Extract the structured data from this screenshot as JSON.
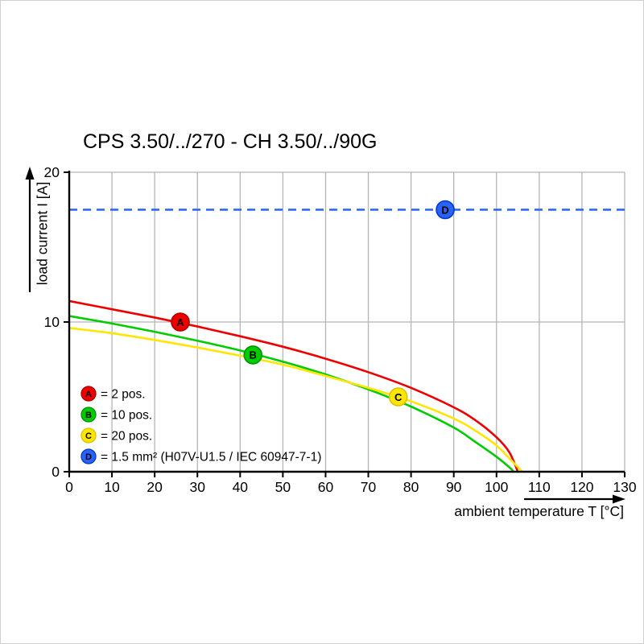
{
  "page": {
    "background": "#ffffff",
    "frame_border_color": "#cfcfcf"
  },
  "chart_data": {
    "type": "line",
    "title": "CPS 3.50/../270 - CH 3.50/../90G",
    "xlabel": "ambient temperature T [°C]",
    "ylabel": "load current I [A]",
    "xlim": [
      0,
      130
    ],
    "ylim": [
      0,
      20
    ],
    "x_ticks": [
      0,
      10,
      20,
      30,
      40,
      50,
      60,
      70,
      80,
      90,
      100,
      110,
      120,
      130
    ],
    "y_ticks": [
      0,
      10,
      20
    ],
    "grid": "on",
    "grid_color": "#b5b5b5",
    "axis_color": "#000000",
    "marker_letter_color": "#ffffff",
    "legend_position": "inside-bottom-left",
    "series": [
      {
        "id": "A",
        "legend": "= 2 pos.",
        "color": "#ee0000",
        "marker_stroke": "#aa0000",
        "line_style": "solid",
        "points": [
          [
            0,
            11.4
          ],
          [
            10,
            10.85
          ],
          [
            20,
            10.3
          ],
          [
            30,
            9.7
          ],
          [
            40,
            9.05
          ],
          [
            50,
            8.35
          ],
          [
            60,
            7.55
          ],
          [
            70,
            6.65
          ],
          [
            80,
            5.6
          ],
          [
            90,
            4.3
          ],
          [
            95,
            3.45
          ],
          [
            100,
            2.3
          ],
          [
            103,
            1.3
          ],
          [
            105,
            0
          ]
        ],
        "marker": {
          "t": 26,
          "i": 10.0
        }
      },
      {
        "id": "B",
        "legend": "= 10 pos.",
        "color": "#00cc00",
        "marker_stroke": "#009100",
        "line_style": "solid",
        "points": [
          [
            0,
            10.4
          ],
          [
            10,
            9.9
          ],
          [
            20,
            9.35
          ],
          [
            30,
            8.75
          ],
          [
            40,
            8.1
          ],
          [
            50,
            7.35
          ],
          [
            60,
            6.5
          ],
          [
            70,
            5.5
          ],
          [
            80,
            4.35
          ],
          [
            90,
            2.95
          ],
          [
            95,
            2.0
          ],
          [
            100,
            1.0
          ],
          [
            103,
            0.3
          ],
          [
            104,
            0
          ]
        ],
        "marker": {
          "t": 43,
          "i": 7.8
        }
      },
      {
        "id": "C",
        "legend": "= 20 pos.",
        "color": "#ffe600",
        "marker_stroke": "#d8c300",
        "line_style": "solid",
        "points": [
          [
            0,
            9.6
          ],
          [
            10,
            9.25
          ],
          [
            20,
            8.8
          ],
          [
            30,
            8.3
          ],
          [
            40,
            7.75
          ],
          [
            50,
            7.15
          ],
          [
            60,
            6.4
          ],
          [
            70,
            5.6
          ],
          [
            80,
            4.7
          ],
          [
            90,
            3.55
          ],
          [
            95,
            2.75
          ],
          [
            100,
            1.75
          ],
          [
            104,
            0.6
          ],
          [
            106,
            0
          ]
        ],
        "marker": {
          "t": 77,
          "i": 5.0
        }
      },
      {
        "id": "D",
        "legend": "= 1.5 mm² (H07V-U1.5 / IEC 60947-7-1)",
        "color": "#2a62f5",
        "marker_stroke": "#0038cc",
        "line_style": "dashed",
        "points": [
          [
            0,
            17.5
          ],
          [
            130,
            17.5
          ]
        ],
        "marker": {
          "t": 88,
          "i": 17.5
        }
      }
    ]
  }
}
